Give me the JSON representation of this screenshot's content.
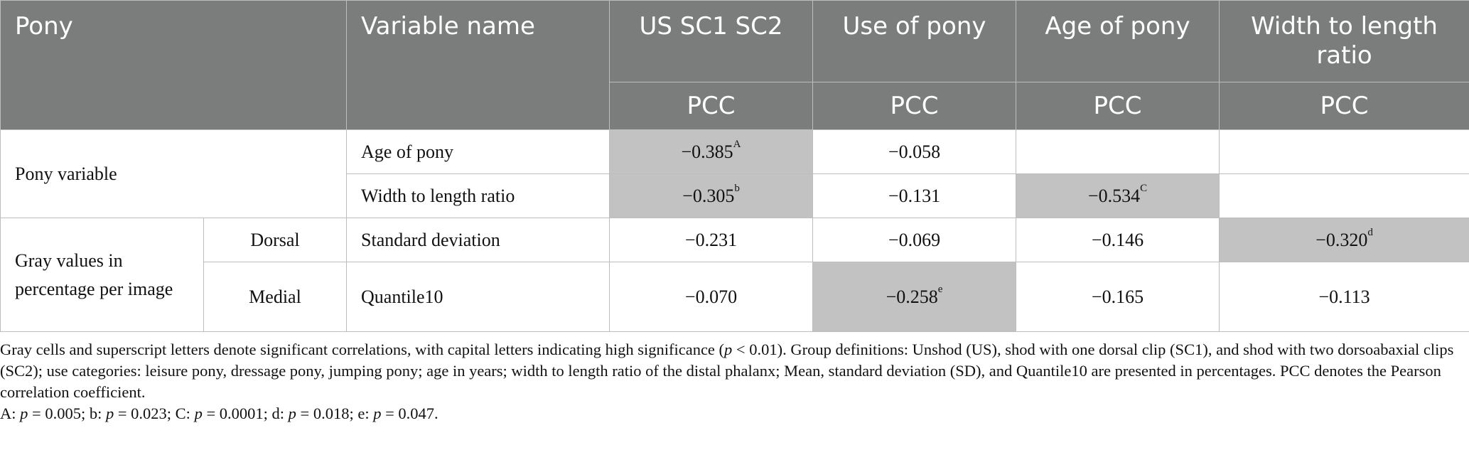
{
  "header": {
    "pony": "Pony",
    "variable_name": "Variable name",
    "us_sc": "US SC1 SC2",
    "use_of_pony": "Use of pony",
    "age_of_pony": "Age of pony",
    "width_ratio": "Width to length ratio",
    "pcc": "PCC"
  },
  "rows": {
    "pony_variable_label": "Pony variable",
    "gray_values_label": "Gray values in percentage per image",
    "dorsal_label": "Dorsal",
    "medial_label": "Medial",
    "r1": {
      "variable": "Age of pony",
      "us": "−0.385",
      "us_sup": "A",
      "use": "−0.058",
      "age": "",
      "ratio": ""
    },
    "r2": {
      "variable": "Width to length ratio",
      "us": "−0.305",
      "us_sup": "b",
      "use": "−0.131",
      "age": "−0.534",
      "age_sup": "C",
      "ratio": ""
    },
    "r3": {
      "variable": "Standard deviation",
      "us": "−0.231",
      "use": "−0.069",
      "age": "−0.146",
      "ratio": "−0.320",
      "ratio_sup": "d"
    },
    "r4": {
      "variable": "Quantile10",
      "us": "−0.070",
      "use": "−0.258",
      "use_sup": "e",
      "age": "−0.165",
      "ratio": "−0.113"
    }
  },
  "footnote": {
    "part1": "Gray cells and superscript letters denote significant correlations, with capital letters indicating high significance (",
    "p_italic": "p",
    "part2": " < 0.01). Group definitions: Unshod (US), shod with one dorsal clip (SC1), and shod with two dorsoabaxial clips (SC2); use categories: leisure pony, dressage pony, jumping pony; age in years; width to length ratio of the distal phalanx; Mean, standard deviation (SD), and Quantile10 are presented in percentages. PCC denotes the Pearson correlation coefficient.",
    "pvalues": [
      {
        "label": "A: ",
        "p": "p",
        "val": " = 0.005; "
      },
      {
        "label": "b: ",
        "p": "p",
        "val": " = 0.023; "
      },
      {
        "label": "C: ",
        "p": "p",
        "val": " = 0.0001; "
      },
      {
        "label": "d: ",
        "p": "p",
        "val": " = 0.018; "
      },
      {
        "label": "e: ",
        "p": "p",
        "val": " = 0.047."
      }
    ]
  },
  "colors": {
    "header_bg": "#7b7d7c",
    "significant_bg": "#c3c2c2",
    "border": "#bdbdbd"
  }
}
